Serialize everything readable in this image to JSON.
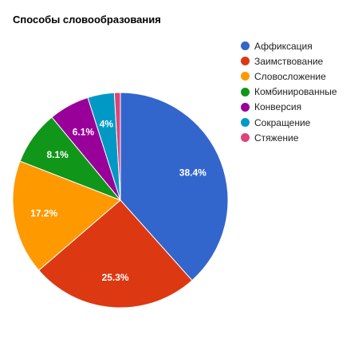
{
  "chart_data": {
    "type": "pie",
    "title": "Способы словообразования",
    "legend_position": "right",
    "categories": [
      "Аффиксация",
      "Заимствование",
      "Словосложение",
      "Комбинированные",
      "Конверсия",
      "Сокращение",
      "Стяжение"
    ],
    "values": [
      38.4,
      25.3,
      17.2,
      8.1,
      6.1,
      4.0,
      0.9
    ],
    "labels": [
      "38.4%",
      "25.3%",
      "17.2%",
      "8.1%",
      "6.1%",
      "4%",
      ""
    ],
    "colors": [
      "#3366cc",
      "#dc3912",
      "#ff9900",
      "#109618",
      "#990099",
      "#0099c6",
      "#dd4477"
    ]
  }
}
